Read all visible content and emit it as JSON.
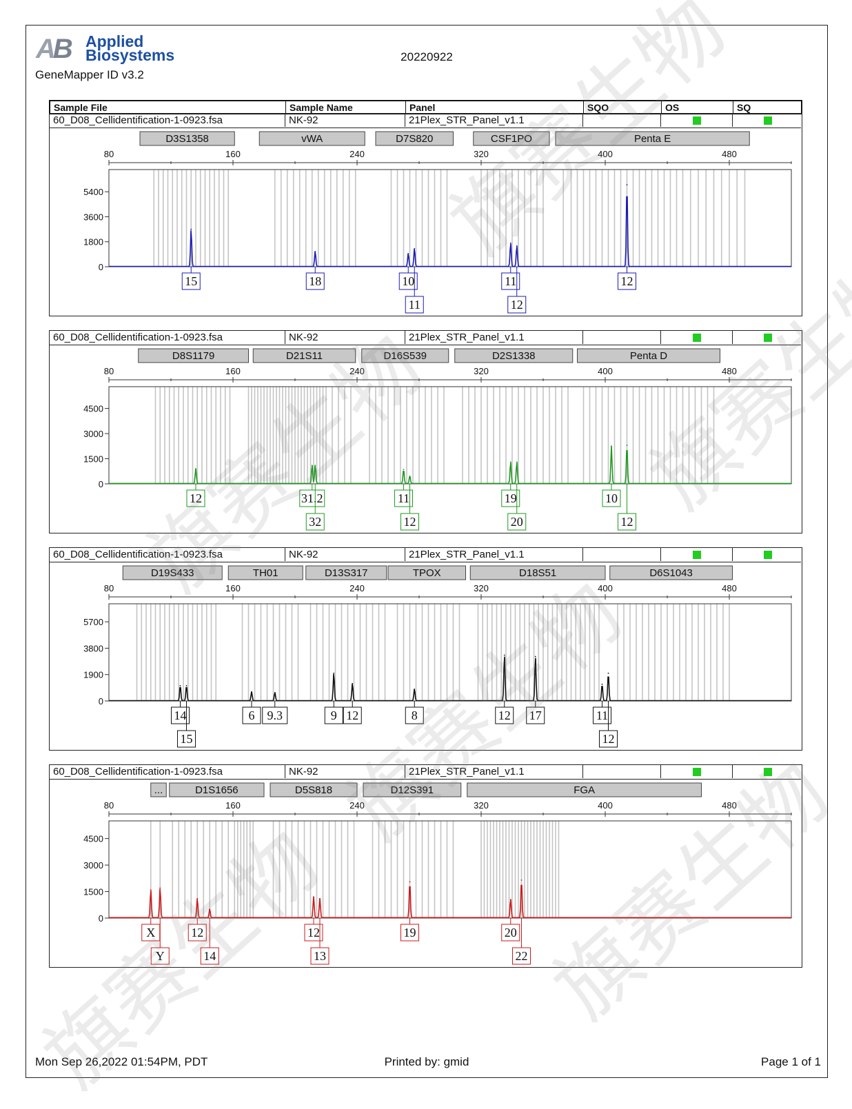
{
  "header": {
    "logo_line1": "Applied",
    "logo_line2": "Biosystems",
    "software": "GeneMapper ID v3.2",
    "report_title": "20220922"
  },
  "columns": [
    "Sample File",
    "Sample Name",
    "Panel",
    "SQO",
    "OS",
    "SQ"
  ],
  "flag_color": "#22cc22",
  "footer": {
    "date": "Mon Sep 26,2022 01:54PM, PDT",
    "printed_by": "Printed by: gmid",
    "page": "Page 1 of 1"
  },
  "chart_data": [
    {
      "type": "line",
      "dye": "blue",
      "color": "#1a1ab4",
      "sample_file": "60_D08_Cellidentification-1-0923.fsa",
      "sample_name": "NK-92",
      "panel": "21Plex_STR_Panel_v1.1",
      "xlim": [
        80,
        520
      ],
      "ylim": [
        0,
        7000
      ],
      "xticks": [
        80,
        160,
        240,
        320,
        400,
        480
      ],
      "yticks": [
        0,
        1800,
        3600,
        5400
      ],
      "markers": [
        {
          "name": "D3S1358",
          "start": 100,
          "end": 161
        },
        {
          "name": "vWA",
          "start": 177,
          "end": 245
        },
        {
          "name": "D7S820",
          "start": 252,
          "end": 302
        },
        {
          "name": "CSF1PO",
          "start": 315,
          "end": 364
        },
        {
          "name": "Penta E",
          "start": 368,
          "end": 493
        }
      ],
      "peaks": [
        {
          "x": 133,
          "y": 2700
        },
        {
          "x": 213,
          "y": 1100
        },
        {
          "x": 273,
          "y": 950
        },
        {
          "x": 277,
          "y": 1300
        },
        {
          "x": 339,
          "y": 1700
        },
        {
          "x": 343,
          "y": 1500
        },
        {
          "x": 414,
          "y": 5900
        }
      ],
      "alleles": [
        {
          "x": 133,
          "label": "15",
          "row": 1
        },
        {
          "x": 213,
          "label": "18",
          "row": 1
        },
        {
          "x": 273,
          "label": "10",
          "row": 1
        },
        {
          "x": 277,
          "label": "11",
          "row": 2
        },
        {
          "x": 339,
          "label": "11",
          "row": 1
        },
        {
          "x": 343,
          "label": "12",
          "row": 2
        },
        {
          "x": 414,
          "label": "12",
          "row": 1
        }
      ],
      "bins": [
        109,
        112,
        115,
        118,
        121,
        124,
        127,
        130,
        133,
        136,
        139,
        142,
        145,
        148,
        151,
        154,
        157,
        187,
        191,
        195,
        199,
        203,
        207,
        211,
        215,
        219,
        223,
        227,
        231,
        235,
        239,
        262,
        266,
        270,
        274,
        278,
        282,
        286,
        290,
        294,
        298,
        320,
        324,
        328,
        332,
        336,
        340,
        344,
        348,
        352,
        356,
        360,
        373,
        378,
        382,
        386,
        390,
        394,
        398,
        402,
        406,
        410,
        414,
        418,
        422,
        426,
        430,
        434,
        438,
        442,
        446,
        450,
        455,
        460,
        465,
        470,
        475,
        480,
        485,
        490
      ]
    },
    {
      "type": "line",
      "dye": "green",
      "color": "#1e9a1e",
      "sample_file": "60_D08_Cellidentification-1-0923.fsa",
      "sample_name": "NK-92",
      "panel": "21Plex_STR_Panel_v1.1",
      "xlim": [
        80,
        520
      ],
      "ylim": [
        0,
        5800
      ],
      "xticks": [
        80,
        160,
        240,
        320,
        400,
        480
      ],
      "yticks": [
        0,
        1500,
        3000,
        4500
      ],
      "markers": [
        {
          "name": "D8S1179",
          "start": 99,
          "end": 170
        },
        {
          "name": "D21S11",
          "start": 173,
          "end": 239
        },
        {
          "name": "D16S539",
          "start": 243,
          "end": 299
        },
        {
          "name": "D2S1338",
          "start": 303,
          "end": 379
        },
        {
          "name": "Penta D",
          "start": 382,
          "end": 474
        }
      ],
      "peaks": [
        {
          "x": 136,
          "y": 900
        },
        {
          "x": 211,
          "y": 1100
        },
        {
          "x": 213,
          "y": 1100
        },
        {
          "x": 270,
          "y": 850
        },
        {
          "x": 274,
          "y": 450
        },
        {
          "x": 339,
          "y": 1300
        },
        {
          "x": 343,
          "y": 1300
        },
        {
          "x": 404,
          "y": 2250
        },
        {
          "x": 414,
          "y": 2300
        }
      ],
      "alleles": [
        {
          "x": 136,
          "label": "12",
          "row": 1
        },
        {
          "x": 211,
          "label": "31.2",
          "row": 1
        },
        {
          "x": 213,
          "label": "32",
          "row": 2
        },
        {
          "x": 270,
          "label": "11",
          "row": 1
        },
        {
          "x": 274,
          "label": "12",
          "row": 2
        },
        {
          "x": 339,
          "label": "19",
          "row": 1
        },
        {
          "x": 343,
          "label": "20",
          "row": 2
        },
        {
          "x": 404,
          "label": "10",
          "row": 1
        },
        {
          "x": 414,
          "label": "12",
          "row": 2
        }
      ],
      "bins": [
        110,
        113,
        116,
        119,
        122,
        125,
        128,
        131,
        134,
        137,
        140,
        143,
        146,
        149,
        152,
        155,
        158,
        170,
        172,
        174,
        176,
        178,
        180,
        182,
        184,
        186,
        188,
        190,
        192,
        194,
        196,
        198,
        200,
        202,
        204,
        206,
        208,
        210,
        212,
        214,
        216,
        218,
        220,
        224,
        228,
        232,
        236,
        248,
        252,
        256,
        260,
        264,
        268,
        272,
        276,
        280,
        284,
        288,
        292,
        296,
        308,
        312,
        316,
        320,
        324,
        328,
        332,
        336,
        340,
        344,
        348,
        352,
        356,
        360,
        364,
        368,
        372,
        376,
        386,
        390,
        394,
        398,
        402,
        406,
        410,
        414,
        418,
        422,
        426,
        430,
        434,
        438,
        442,
        446,
        450,
        454,
        458,
        462,
        466,
        470
      ]
    },
    {
      "type": "line",
      "dye": "black",
      "color": "#111111",
      "sample_file": "60_D08_Cellidentification-1-0923.fsa",
      "sample_name": "NK-92",
      "panel": "21Plex_STR_Panel_v1.1",
      "xlim": [
        80,
        520
      ],
      "ylim": [
        0,
        7000
      ],
      "xticks": [
        80,
        160,
        240,
        320,
        400,
        480
      ],
      "yticks": [
        0,
        1900,
        3800,
        5700
      ],
      "markers": [
        {
          "name": "D19S433",
          "start": 89,
          "end": 153
        },
        {
          "name": "TH01",
          "start": 157,
          "end": 205
        },
        {
          "name": "D13S317",
          "start": 207,
          "end": 259
        },
        {
          "name": "TPOX",
          "start": 260,
          "end": 310
        },
        {
          "name": "D18S51",
          "start": 313,
          "end": 400
        },
        {
          "name": "D6S1043",
          "start": 403,
          "end": 482
        }
      ],
      "peaks": [
        {
          "x": 126,
          "y": 1100
        },
        {
          "x": 130,
          "y": 1100
        },
        {
          "x": 172,
          "y": 650
        },
        {
          "x": 187,
          "y": 600
        },
        {
          "x": 225,
          "y": 2000
        },
        {
          "x": 237,
          "y": 1250
        },
        {
          "x": 277,
          "y": 850
        },
        {
          "x": 335,
          "y": 3300
        },
        {
          "x": 355,
          "y": 3200
        },
        {
          "x": 398,
          "y": 1200
        },
        {
          "x": 402,
          "y": 2000
        }
      ],
      "alleles": [
        {
          "x": 126,
          "label": "14",
          "row": 1
        },
        {
          "x": 130,
          "label": "15",
          "row": 2
        },
        {
          "x": 172,
          "label": "6",
          "row": 1
        },
        {
          "x": 187,
          "label": "9.3",
          "row": 1
        },
        {
          "x": 225,
          "label": "9",
          "row": 1
        },
        {
          "x": 237,
          "label": "12",
          "row": 1
        },
        {
          "x": 277,
          "label": "8",
          "row": 1
        },
        {
          "x": 335,
          "label": "12",
          "row": 1
        },
        {
          "x": 355,
          "label": "17",
          "row": 1
        },
        {
          "x": 398,
          "label": "11",
          "row": 1
        },
        {
          "x": 402,
          "label": "12",
          "row": 2
        }
      ],
      "bins": [
        98,
        101,
        104,
        107,
        110,
        113,
        116,
        119,
        122,
        125,
        128,
        131,
        134,
        137,
        140,
        143,
        146,
        149,
        166,
        170,
        174,
        178,
        182,
        186,
        190,
        194,
        198,
        202,
        210,
        214,
        218,
        222,
        226,
        230,
        234,
        238,
        242,
        246,
        250,
        254,
        258,
        266,
        270,
        274,
        278,
        282,
        286,
        290,
        294,
        298,
        302,
        306,
        318,
        321,
        324,
        327,
        330,
        333,
        336,
        339,
        342,
        345,
        348,
        351,
        354,
        357,
        360,
        363,
        366,
        369,
        372,
        375,
        378,
        381,
        384,
        387,
        390,
        393,
        396,
        408,
        412,
        416,
        420,
        424,
        428,
        432,
        436,
        440,
        444,
        448,
        452,
        456,
        460,
        464,
        468,
        472,
        476,
        480
      ]
    },
    {
      "type": "line",
      "dye": "red",
      "color": "#cc1a1a",
      "sample_file": "60_D08_Cellidentification-1-0923.fsa",
      "sample_name": "NK-92",
      "panel": "21Plex_STR_Panel_v1.1",
      "xlim": [
        80,
        520
      ],
      "ylim": [
        0,
        5500
      ],
      "xticks": [
        80,
        160,
        240,
        320,
        400,
        480
      ],
      "yticks": [
        0,
        1500,
        3000,
        4500
      ],
      "markers": [
        {
          "name": "...",
          "start": 107,
          "end": 117
        },
        {
          "name": "D1S1656",
          "start": 119,
          "end": 180
        },
        {
          "name": "D5S818",
          "start": 184,
          "end": 240
        },
        {
          "name": "D12S391",
          "start": 244,
          "end": 307
        },
        {
          "name": "FGA",
          "start": 311,
          "end": 462
        }
      ],
      "peaks": [
        {
          "x": 107,
          "y": 1600
        },
        {
          "x": 113,
          "y": 1700
        },
        {
          "x": 137,
          "y": 1100
        },
        {
          "x": 145,
          "y": 500
        },
        {
          "x": 212,
          "y": 1200
        },
        {
          "x": 216,
          "y": 1100
        },
        {
          "x": 274,
          "y": 2050
        },
        {
          "x": 339,
          "y": 1050
        },
        {
          "x": 346,
          "y": 2150
        }
      ],
      "alleles": [
        {
          "x": 107,
          "label": "X",
          "row": 1
        },
        {
          "x": 113,
          "label": "Y",
          "row": 2
        },
        {
          "x": 137,
          "label": "12",
          "row": 1
        },
        {
          "x": 145,
          "label": "14",
          "row": 2
        },
        {
          "x": 212,
          "label": "12",
          "row": 1
        },
        {
          "x": 216,
          "label": "13",
          "row": 2
        },
        {
          "x": 274,
          "label": "19",
          "row": 1
        },
        {
          "x": 339,
          "label": "20",
          "row": 1
        },
        {
          "x": 346,
          "label": "22",
          "row": 2
        }
      ],
      "bins": [
        107,
        113,
        121,
        125,
        129,
        133,
        137,
        141,
        145,
        149,
        153,
        157,
        161,
        163,
        165,
        167,
        169,
        171,
        173,
        186,
        190,
        194,
        198,
        202,
        206,
        210,
        214,
        218,
        222,
        226,
        230,
        234,
        238,
        250,
        254,
        258,
        262,
        266,
        270,
        274,
        278,
        282,
        286,
        290,
        294,
        298,
        302,
        320,
        322,
        324,
        326,
        328,
        330,
        332,
        334,
        336,
        338,
        340,
        342,
        344,
        346,
        348,
        350,
        352,
        354,
        356,
        358,
        360,
        362,
        364,
        366,
        368,
        370
      ]
    }
  ]
}
